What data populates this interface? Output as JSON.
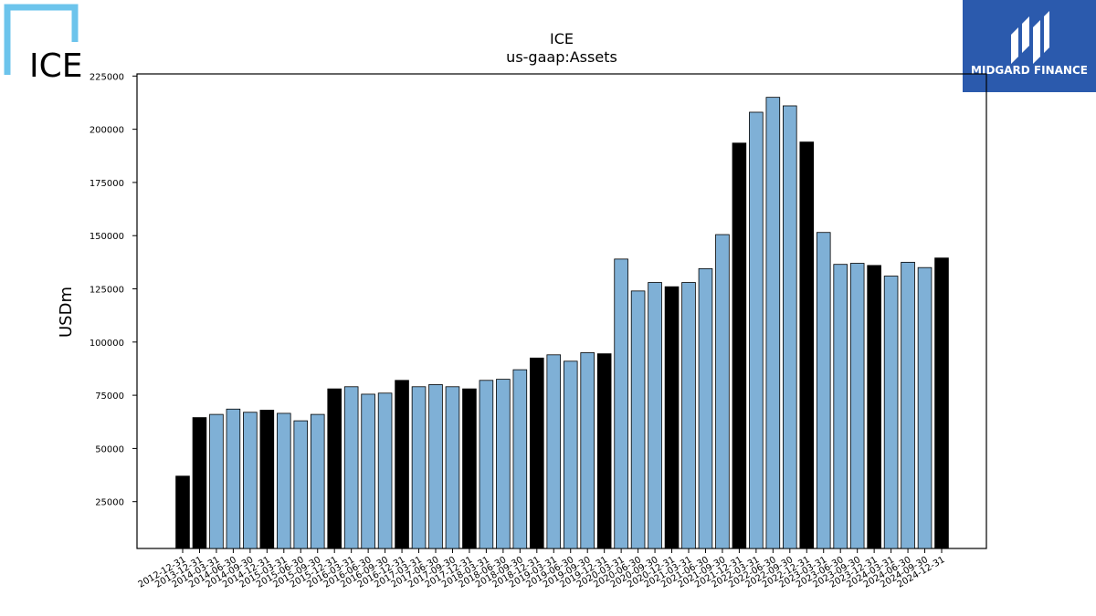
{
  "logo_left": {
    "text": "ICE",
    "color": "#6cc4ec"
  },
  "logo_right": {
    "text": "MIDGARD FINANCE",
    "background": "#2b5aad"
  },
  "colors": {
    "bar_default": "#7fb0d6",
    "bar_highlight": "#000000",
    "bar_edge": "#000000"
  },
  "chart_data": {
    "type": "bar",
    "title": "ICE",
    "subtitle": "us-gaap:Assets",
    "ylabel": "USDm",
    "xlabel": "",
    "ylim": [
      3000,
      226000
    ],
    "yticks": [
      25000,
      50000,
      75000,
      100000,
      125000,
      150000,
      175000,
      200000,
      225000
    ],
    "grid": false,
    "categories": [
      "2012-12-31",
      "2013-12-31",
      "2014-03-31",
      "2014-06-30",
      "2014-09-30",
      "2014-12-31",
      "2015-03-31",
      "2015-06-30",
      "2015-09-30",
      "2015-12-31",
      "2016-03-31",
      "2016-06-30",
      "2016-09-30",
      "2016-12-31",
      "2017-03-31",
      "2017-06-30",
      "2017-09-30",
      "2017-12-31",
      "2018-03-31",
      "2018-06-30",
      "2018-09-30",
      "2018-12-31",
      "2019-03-31",
      "2019-06-30",
      "2019-09-30",
      "2019-12-31",
      "2020-03-31",
      "2020-06-30",
      "2020-09-30",
      "2020-12-31",
      "2021-03-31",
      "2021-06-30",
      "2021-09-30",
      "2021-12-31",
      "2022-03-31",
      "2022-06-30",
      "2022-09-30",
      "2022-12-31",
      "2023-03-31",
      "2023-06-30",
      "2023-09-30",
      "2023-12-31",
      "2024-03-31",
      "2024-06-30",
      "2024-09-30",
      "2024-12-31"
    ],
    "values": [
      37000,
      64500,
      66000,
      68500,
      67000,
      68000,
      66500,
      63000,
      66000,
      78000,
      79000,
      75500,
      76000,
      82000,
      79000,
      80000,
      79000,
      78000,
      82000,
      82500,
      87000,
      92500,
      94000,
      91000,
      95000,
      94500,
      139000,
      124000,
      128000,
      126000,
      128000,
      134500,
      150500,
      193500,
      208000,
      215000,
      211000,
      194000,
      151500,
      136500,
      137000,
      136000,
      131000,
      137500,
      135000,
      139500
    ],
    "highlight": [
      true,
      true,
      false,
      false,
      false,
      true,
      false,
      false,
      false,
      true,
      false,
      false,
      false,
      true,
      false,
      false,
      false,
      true,
      false,
      false,
      false,
      true,
      false,
      false,
      false,
      true,
      false,
      false,
      false,
      true,
      false,
      false,
      false,
      true,
      false,
      false,
      false,
      true,
      false,
      false,
      false,
      true,
      false,
      false,
      false,
      true
    ]
  }
}
